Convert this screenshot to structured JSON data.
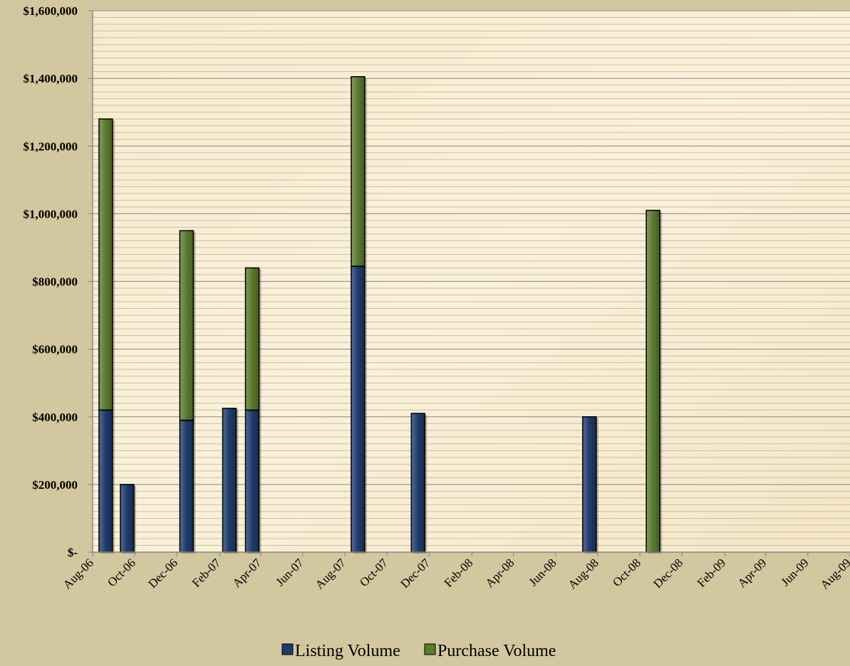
{
  "chart_data": {
    "type": "bar",
    "stacked": true,
    "x_ticks": [
      "Aug-06",
      "Oct-06",
      "Dec-06",
      "Feb-07",
      "Apr-07",
      "Jun-07",
      "Aug-07",
      "Oct-07",
      "Dec-07",
      "Feb-08",
      "Apr-08",
      "Jun-08",
      "Aug-08",
      "Oct-08",
      "Dec-08",
      "Feb-09",
      "Apr-09",
      "Jun-09",
      "Aug-09"
    ],
    "y_ticks": [
      "$-",
      "$200,000",
      "$400,000",
      "$600,000",
      "$800,000",
      "$1,000,000",
      "$1,200,000",
      "$1,400,000",
      "$1,600,000"
    ],
    "ylim": [
      0,
      1600000
    ],
    "grid": true,
    "legend_position": "bottom",
    "series": [
      {
        "name": "Listing Volume",
        "color": "#1f3b6b",
        "points": [
          {
            "x": "2006-08-20",
            "value": 420000
          },
          {
            "x": "2006-09-20",
            "value": 200000
          },
          {
            "x": "2006-12-15",
            "value": 390000
          },
          {
            "x": "2007-02-15",
            "value": 425000
          },
          {
            "x": "2007-03-20",
            "value": 420000
          },
          {
            "x": "2007-08-20",
            "value": 845000
          },
          {
            "x": "2007-11-15",
            "value": 410000
          },
          {
            "x": "2008-07-20",
            "value": 400000
          }
        ]
      },
      {
        "name": "Purchase Volume",
        "color": "#5a7a2e",
        "points": [
          {
            "x": "2006-08-20",
            "value": 860000
          },
          {
            "x": "2006-12-15",
            "value": 560000
          },
          {
            "x": "2007-03-20",
            "value": 420000
          },
          {
            "x": "2007-08-20",
            "value": 560000
          },
          {
            "x": "2008-10-20",
            "value": 1010000
          }
        ]
      }
    ]
  }
}
